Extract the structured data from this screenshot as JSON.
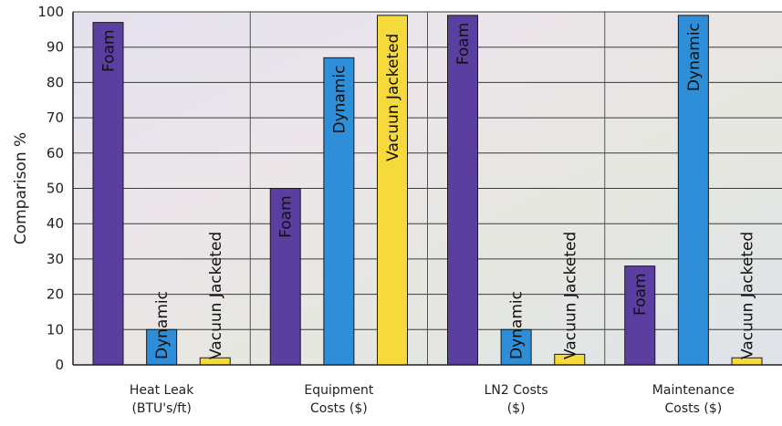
{
  "chart_data": {
    "type": "bar",
    "title": "",
    "xlabel": "",
    "ylabel": "Comparison %",
    "ylim": [
      0,
      100
    ],
    "yticks": [
      0,
      10,
      20,
      30,
      40,
      50,
      60,
      70,
      80,
      90,
      100
    ],
    "grid": true,
    "categories": [
      [
        "Heat Leak",
        "(BTU's/ft)"
      ],
      [
        "Equipment",
        "Costs ($)"
      ],
      [
        "LN2 Costs",
        "($)"
      ],
      [
        "Maintenance",
        "Costs ($)"
      ]
    ],
    "series": [
      {
        "name": "Foam",
        "color": "#5b3fa0",
        "values": [
          97,
          50,
          99,
          28
        ]
      },
      {
        "name": "Dynamic",
        "color": "#2e8fd8",
        "values": [
          10,
          87,
          10,
          99
        ]
      },
      {
        "name": "Vacuun Jacketed",
        "color": "#f6d93a",
        "values": [
          2,
          99,
          3,
          2
        ]
      }
    ]
  }
}
